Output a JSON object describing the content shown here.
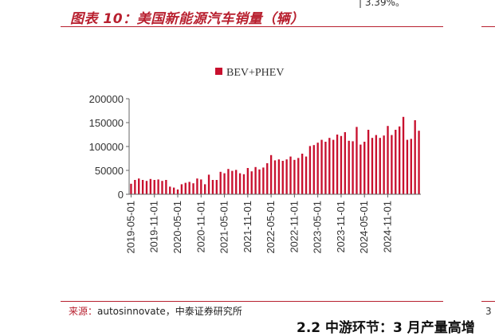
{
  "header": {
    "figure_title": "图表 10：美国新能源汽车销量（辆）",
    "cut_text": "|  3.39%。"
  },
  "footer": {
    "source_label": "来源：",
    "source_text": "autosinnovate，中泰证券研究所",
    "next_section_heading": "2.2 中游环节：3 月产量高增",
    "edge_text": "3"
  },
  "colors": {
    "accent": "#b8202f",
    "bar": "#c8102e"
  },
  "chart_data": {
    "type": "bar",
    "series": [
      {
        "name": "BEV+PHEV",
        "values": [
          22000,
          30000,
          33000,
          30000,
          28000,
          32000,
          30000,
          31000,
          28000,
          30000,
          16000,
          14000,
          10000,
          21000,
          24000,
          26000,
          23000,
          33000,
          31000,
          21000,
          41000,
          30000,
          30000,
          47000,
          44000,
          53000,
          49000,
          51000,
          44000,
          42000,
          55000,
          48000,
          57000,
          52000,
          56000,
          65000,
          82000,
          71000,
          73000,
          70000,
          73000,
          79000,
          72000,
          76000,
          85000,
          79000,
          101000,
          103000,
          108000,
          114000,
          110000,
          118000,
          114000,
          125000,
          122000,
          130000,
          112000,
          111000,
          141000,
          104000,
          110000,
          135000,
          118000,
          124000,
          118000,
          123000,
          143000,
          124000,
          135000,
          142000,
          162000,
          114000,
          116000,
          155000,
          133000
        ]
      }
    ],
    "x_tick_labels": [
      "2019-05-01",
      "2019-11-01",
      "2020-05-01",
      "2020-11-01",
      "2021-05-01",
      "2021-11-01",
      "2022-05-01",
      "2022-11-01",
      "2023-05-01",
      "2023-11-01",
      "2024-05-01",
      "2024-11-01"
    ],
    "y_ticks": [
      0,
      50000,
      100000,
      150000,
      200000
    ],
    "ylim": [
      0,
      200000
    ],
    "legend": "top-center",
    "grid": false
  }
}
